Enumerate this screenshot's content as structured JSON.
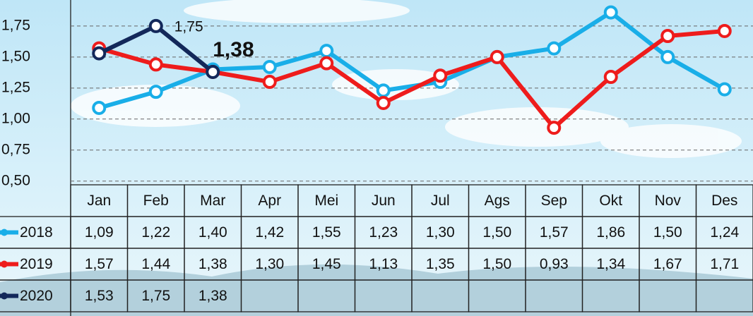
{
  "chart_data": {
    "type": "line",
    "categories": [
      "Jan",
      "Feb",
      "Mar",
      "Apr",
      "Mei",
      "Jun",
      "Jul",
      "Ags",
      "Sep",
      "Okt",
      "Nov",
      "Des"
    ],
    "series": [
      {
        "name": "2018",
        "color": "#19aee8",
        "values": [
          1.09,
          1.22,
          1.4,
          1.42,
          1.55,
          1.23,
          1.3,
          1.5,
          1.57,
          1.86,
          1.5,
          1.24
        ],
        "value_labels": [
          "1,09",
          "1,22",
          "1,40",
          "1,42",
          "1,55",
          "1,23",
          "1,30",
          "1,50",
          "1,57",
          "1,86",
          "1,50",
          "1,24"
        ]
      },
      {
        "name": "2019",
        "color": "#ee1c1c",
        "values": [
          1.57,
          1.44,
          1.38,
          1.3,
          1.45,
          1.13,
          1.35,
          1.5,
          0.93,
          1.34,
          1.67,
          1.71
        ],
        "value_labels": [
          "1,57",
          "1,44",
          "1,38",
          "1,30",
          "1,45",
          "1,13",
          "1,35",
          "1,50",
          "0,93",
          "1,34",
          "1,67",
          "1,71"
        ]
      },
      {
        "name": "2020",
        "color": "#13285a",
        "values": [
          1.53,
          1.75,
          1.38,
          null,
          null,
          null,
          null,
          null,
          null,
          null,
          null,
          null
        ],
        "value_labels": [
          "1,53",
          "1,75",
          "1,38",
          null,
          null,
          null,
          null,
          null,
          null,
          null,
          null,
          null
        ]
      }
    ],
    "ylim": [
      0.47,
      1.96
    ],
    "yticks": [
      {
        "value": 0.5,
        "label": "0,50"
      },
      {
        "value": 0.75,
        "label": "0,75"
      },
      {
        "value": 1.0,
        "label": "1,00"
      },
      {
        "value": 1.25,
        "label": "1,25"
      },
      {
        "value": 1.5,
        "label": "1,50"
      },
      {
        "value": 1.75,
        "label": "1,75"
      }
    ],
    "grid": true
  }
}
